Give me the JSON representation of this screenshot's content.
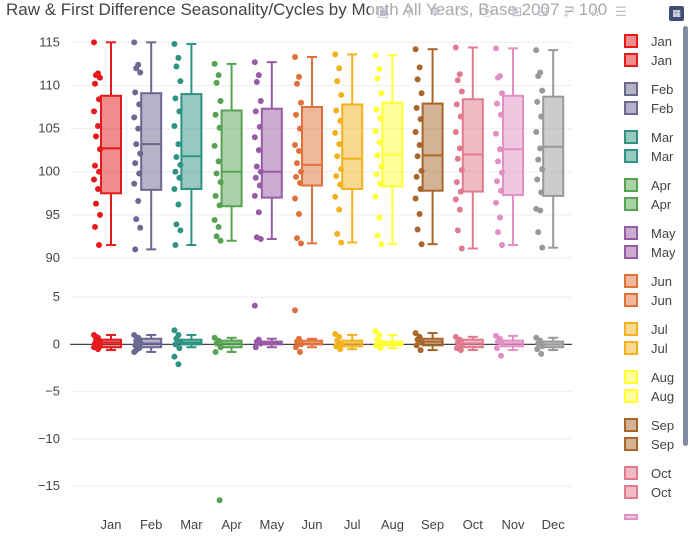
{
  "title": "Raw & First Difference Seasonality/Cycles by Month All Years, Base 2007 = 100",
  "modebar": {
    "icons": [
      "camera-icon",
      "zoom-icon",
      "pan-icon",
      "box-select-icon",
      "lasso-icon",
      "zoom-in-icon",
      "zoom-out-icon",
      "autoscale-icon",
      "reset-axes-icon",
      "plotly-logo-icon"
    ]
  },
  "chart_data": {
    "type": "box",
    "categories": [
      "Jan",
      "Feb",
      "Mar",
      "Apr",
      "May",
      "Jun",
      "Jul",
      "Aug",
      "Sep",
      "Oct",
      "Nov",
      "Dec"
    ],
    "colors": [
      "#e41a1c",
      "#6b6891",
      "#2f9383",
      "#57a353",
      "#985ba6",
      "#e0713b",
      "#f4b21f",
      "#ffff33",
      "#a8662b",
      "#e07a8e",
      "#e28fc4",
      "#999999"
    ],
    "legend_placement": "right",
    "panels": [
      {
        "name": "raw",
        "ylim": [
          90,
          115.5
        ],
        "ticks": [
          90,
          95,
          100,
          105,
          110,
          115
        ],
        "series": [
          {
            "name": "Jan",
            "q1": 97.5,
            "median": 102.7,
            "q3": 108.8,
            "lower": 91.5,
            "upper": 115.0,
            "points": [
              115.0,
              111.4,
              111.2,
              110.9,
              110.2,
              108.4,
              107.0,
              105.3,
              104.1,
              102.6,
              100.7,
              100.0,
              99.1,
              98.0,
              96.3,
              95.0,
              93.6,
              91.5
            ]
          },
          {
            "name": "Feb",
            "q1": 97.9,
            "median": 103.2,
            "q3": 109.1,
            "lower": 91.0,
            "upper": 115.0,
            "points": [
              115.0,
              112.4,
              112.0,
              111.5,
              109.2,
              107.8,
              106.3,
              105.0,
              103.2,
              102.1,
              101.0,
              99.8,
              98.6,
              96.6,
              94.5,
              93.5,
              91.0
            ]
          },
          {
            "name": "Mar",
            "q1": 98.0,
            "median": 101.8,
            "q3": 109.0,
            "lower": 91.5,
            "upper": 114.8,
            "points": [
              114.8,
              113.2,
              112.2,
              110.5,
              108.5,
              107.0,
              105.3,
              103.2,
              101.7,
              100.8,
              100.0,
              99.3,
              98.0,
              96.2,
              93.9,
              93.2,
              91.5
            ]
          },
          {
            "name": "Apr",
            "q1": 96.0,
            "median": 100.0,
            "q3": 107.1,
            "lower": 92.0,
            "upper": 112.5,
            "points": [
              112.5,
              111.2,
              110.3,
              108.2,
              106.6,
              105.1,
              103.0,
              101.2,
              99.8,
              98.8,
              97.2,
              96.1,
              94.4,
              93.6,
              92.5,
              92.0
            ]
          },
          {
            "name": "May",
            "q1": 97.0,
            "median": 100.0,
            "q3": 107.3,
            "lower": 92.2,
            "upper": 112.7,
            "points": [
              112.7,
              111.2,
              110.4,
              108.2,
              107.0,
              105.2,
              104.0,
              102.5,
              100.6,
              100.0,
              99.3,
              98.4,
              97.2,
              95.3,
              92.4,
              92.2
            ]
          },
          {
            "name": "Jun",
            "q1": 98.4,
            "median": 100.8,
            "q3": 107.5,
            "lower": 91.7,
            "upper": 113.3,
            "points": [
              113.3,
              111.0,
              110.2,
              108.0,
              106.6,
              105.0,
              103.1,
              102.4,
              101.0,
              100.0,
              99.4,
              98.7,
              96.9,
              95.1,
              92.3,
              91.7
            ]
          },
          {
            "name": "Jul",
            "q1": 98.0,
            "median": 101.5,
            "q3": 107.8,
            "lower": 91.8,
            "upper": 113.6,
            "points": [
              113.6,
              112.0,
              110.5,
              108.9,
              107.1,
              105.9,
              104.5,
              103.2,
              101.8,
              100.3,
              99.5,
              98.5,
              97.1,
              95.6,
              92.8,
              91.8
            ]
          },
          {
            "name": "Aug",
            "q1": 98.3,
            "median": 102.0,
            "q3": 108.0,
            "lower": 91.6,
            "upper": 113.5,
            "points": [
              113.5,
              111.9,
              110.8,
              109.1,
              107.2,
              106.2,
              104.7,
              103.4,
              101.9,
              100.6,
              99.7,
              98.6,
              97.1,
              94.7,
              92.6,
              91.6
            ]
          },
          {
            "name": "Sep",
            "q1": 97.8,
            "median": 101.9,
            "q3": 107.9,
            "lower": 91.6,
            "upper": 114.2,
            "points": [
              114.2,
              112.1,
              110.7,
              109.1,
              107.4,
              106.1,
              104.6,
              103.1,
              101.8,
              100.1,
              99.4,
              98.0,
              96.9,
              95.1,
              93.3,
              91.6
            ]
          },
          {
            "name": "Oct",
            "q1": 97.7,
            "median": 102.0,
            "q3": 108.4,
            "lower": 91.1,
            "upper": 114.4,
            "points": [
              114.4,
              111.3,
              110.6,
              109.3,
              107.8,
              106.4,
              104.6,
              102.7,
              101.5,
              100.2,
              98.8,
              97.7,
              96.8,
              95.6,
              93.2,
              91.1
            ]
          },
          {
            "name": "Nov",
            "q1": 97.3,
            "median": 102.6,
            "q3": 108.8,
            "lower": 91.5,
            "upper": 114.3,
            "points": [
              114.3,
              111.1,
              110.9,
              109.1,
              107.9,
              106.6,
              104.4,
              102.6,
              101.2,
              99.9,
              98.9,
              97.8,
              96.4,
              94.7,
              93.0,
              91.5
            ]
          },
          {
            "name": "Dec",
            "q1": 97.2,
            "median": 102.9,
            "q3": 108.7,
            "lower": 91.2,
            "upper": 114.1,
            "points": [
              114.1,
              111.5,
              111.1,
              109.4,
              108.1,
              106.4,
              104.6,
              102.7,
              101.4,
              100.3,
              99.1,
              97.6,
              95.7,
              95.5,
              93.0,
              91.2
            ]
          }
        ]
      },
      {
        "name": "first-difference",
        "ylim": [
          -17,
          6.5
        ],
        "ticks": [
          -15,
          -10,
          -5,
          0,
          5
        ],
        "series": [
          {
            "name": "Jan",
            "q1": -0.3,
            "median": 0.2,
            "q3": 0.5,
            "lower": -0.6,
            "upper": 1.0,
            "points": [
              1.0,
              0.7,
              0.5,
              0.3,
              0.1,
              -0.1,
              -0.3,
              -0.5,
              0.8,
              -0.2
            ]
          },
          {
            "name": "Feb",
            "q1": -0.3,
            "median": 0.1,
            "q3": 0.6,
            "lower": -0.8,
            "upper": 1.0,
            "points": [
              1.0,
              0.7,
              0.4,
              0.2,
              -0.1,
              -0.4,
              -0.8,
              0.5,
              -0.6
            ]
          },
          {
            "name": "Mar",
            "q1": 0.0,
            "median": 0.2,
            "q3": 0.5,
            "lower": -0.3,
            "upper": 1.0,
            "points": [
              1.5,
              1.0,
              0.6,
              0.3,
              0.0,
              -0.4,
              -1.3,
              -2.1
            ]
          },
          {
            "name": "Apr",
            "q1": -0.3,
            "median": 0.1,
            "q3": 0.4,
            "lower": -0.8,
            "upper": 0.7,
            "points": [
              0.7,
              0.4,
              0.1,
              -0.3,
              -0.8,
              -16.5
            ]
          },
          {
            "name": "May",
            "q1": 0.0,
            "median": 0.1,
            "q3": 0.3,
            "lower": -0.3,
            "upper": 0.6,
            "points": [
              4.1,
              0.5,
              0.3,
              0.1,
              -0.3
            ]
          },
          {
            "name": "Jun",
            "q1": 0.0,
            "median": 0.1,
            "q3": 0.4,
            "lower": -0.3,
            "upper": 0.6,
            "points": [
              3.6,
              0.6,
              0.3,
              0.0,
              -0.3,
              -0.8
            ]
          },
          {
            "name": "Jul",
            "q1": -0.2,
            "median": 0.1,
            "q3": 0.4,
            "lower": -0.5,
            "upper": 1.0,
            "points": [
              1.1,
              0.8,
              0.4,
              0.1,
              -0.2,
              -0.5
            ]
          },
          {
            "name": "Aug",
            "q1": -0.1,
            "median": 0.1,
            "q3": 0.3,
            "lower": -0.4,
            "upper": 1.0,
            "points": [
              1.4,
              1.0,
              0.5,
              0.2,
              -0.1,
              -0.4
            ]
          },
          {
            "name": "Sep",
            "q1": -0.1,
            "median": 0.3,
            "q3": 0.6,
            "lower": -0.6,
            "upper": 1.2,
            "points": [
              1.2,
              0.8,
              0.5,
              0.2,
              -0.1,
              -0.6
            ]
          },
          {
            "name": "Oct",
            "q1": -0.3,
            "median": 0.1,
            "q3": 0.5,
            "lower": -0.6,
            "upper": 0.8,
            "points": [
              0.8,
              0.5,
              0.2,
              -0.1,
              -0.4,
              -0.6
            ]
          },
          {
            "name": "Nov",
            "q1": -0.2,
            "median": 0.1,
            "q3": 0.4,
            "lower": -0.6,
            "upper": 0.9,
            "points": [
              0.9,
              0.6,
              0.3,
              0.0,
              -0.4,
              -1.2
            ]
          },
          {
            "name": "Dec",
            "q1": -0.3,
            "median": 0.0,
            "q3": 0.3,
            "lower": -0.6,
            "upper": 0.7,
            "points": [
              0.7,
              0.4,
              0.1,
              -0.2,
              -0.5,
              -1.0
            ]
          }
        ]
      }
    ],
    "legend_entries": [
      "Jan",
      "Jan",
      "Feb",
      "Feb",
      "Mar",
      "Mar",
      "Apr",
      "Apr",
      "May",
      "May",
      "Jun",
      "Jun",
      "Jul",
      "Jul",
      "Aug",
      "Aug",
      "Sep",
      "Sep",
      "Oct",
      "Oct"
    ]
  }
}
